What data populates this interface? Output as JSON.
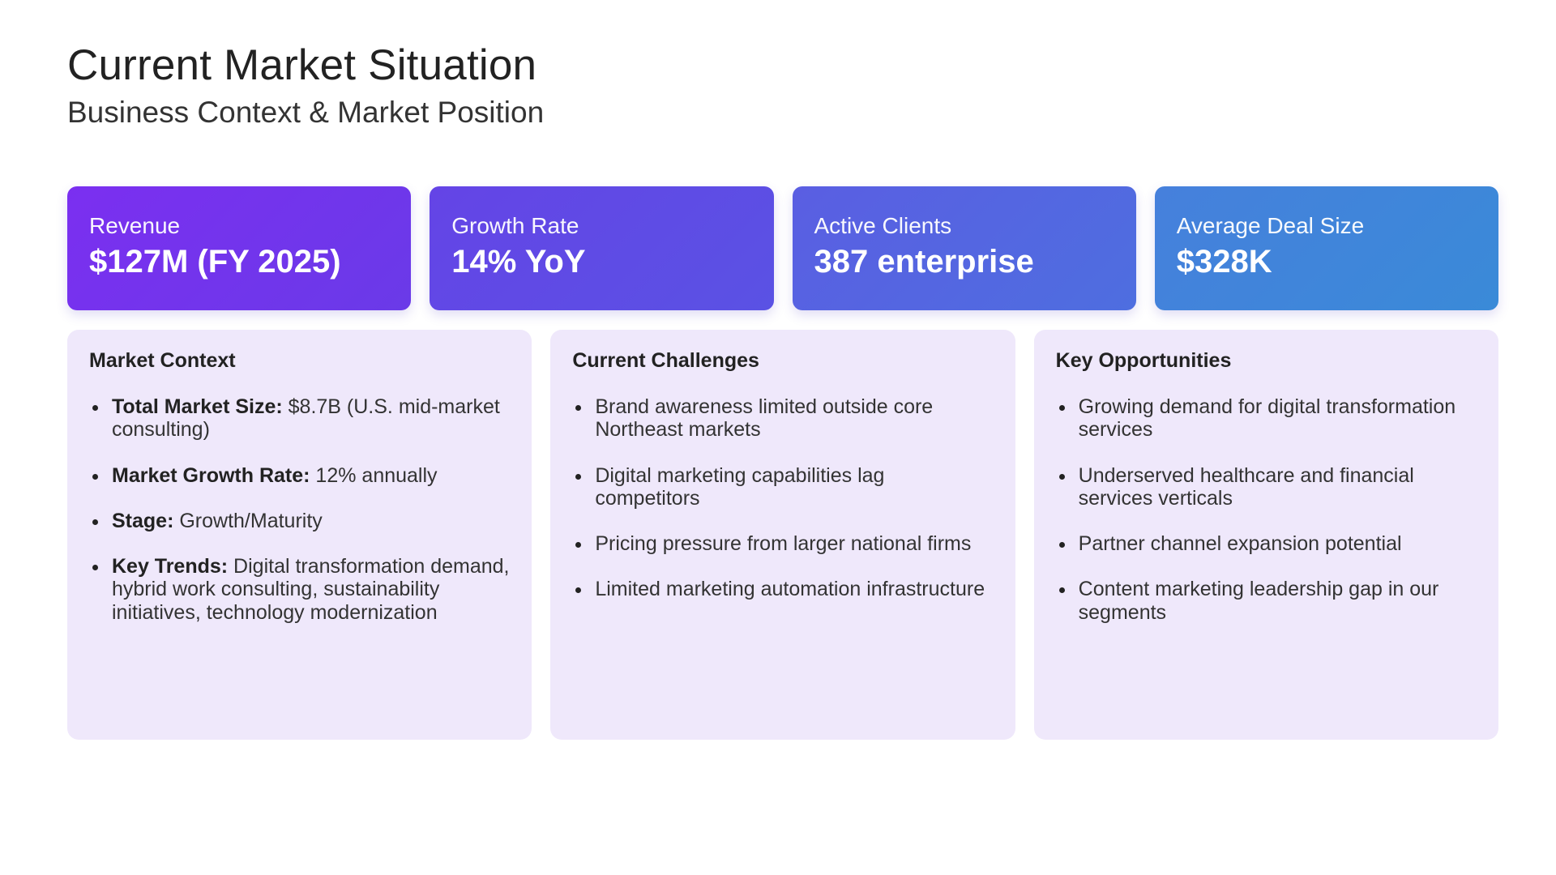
{
  "header": {
    "title": "Current Market Situation",
    "subtitle": "Business Context & Market Position"
  },
  "metrics": [
    {
      "label": "Revenue",
      "value": "$127M (FY 2025)",
      "color_from": "#7b2ff0",
      "color_to": "#6a3ae8"
    },
    {
      "label": "Growth Rate",
      "value": "14% YoY",
      "color_from": "#6444e6",
      "color_to": "#5a52e4"
    },
    {
      "label": "Active Clients",
      "value": "387 enterprise",
      "color_from": "#5a5ee2",
      "color_to": "#4e6ee0"
    },
    {
      "label": "Average Deal Size",
      "value": "$328K",
      "color_from": "#4680dc",
      "color_to": "#3a8ad8"
    }
  ],
  "panels": {
    "market_context": {
      "title": "Market Context",
      "items": [
        {
          "label": "Total Market Size:",
          "text": " $8.7B (U.S. mid-market consulting)"
        },
        {
          "label": "Market Growth Rate:",
          "text": " 12% annually"
        },
        {
          "label": "Stage:",
          "text": " Growth/Maturity"
        },
        {
          "label": "Key Trends:",
          "text": " Digital transformation demand, hybrid work consulting, sustainability initiatives, technology modernization"
        }
      ]
    },
    "challenges": {
      "title": "Current Challenges",
      "items": [
        "Brand awareness limited outside core Northeast markets",
        "Digital marketing capabilities lag competitors",
        "Pricing pressure from larger national firms",
        "Limited marketing automation infrastructure"
      ]
    },
    "opportunities": {
      "title": "Key Opportunities",
      "items": [
        "Growing demand for digital transformation services",
        "Underserved healthcare and financial services verticals",
        "Partner channel expansion potential",
        "Content marketing leadership gap in our segments"
      ]
    }
  },
  "colors": {
    "panel_background": "#efe8fb",
    "title_text": "#222222",
    "body_text": "#333333"
  }
}
